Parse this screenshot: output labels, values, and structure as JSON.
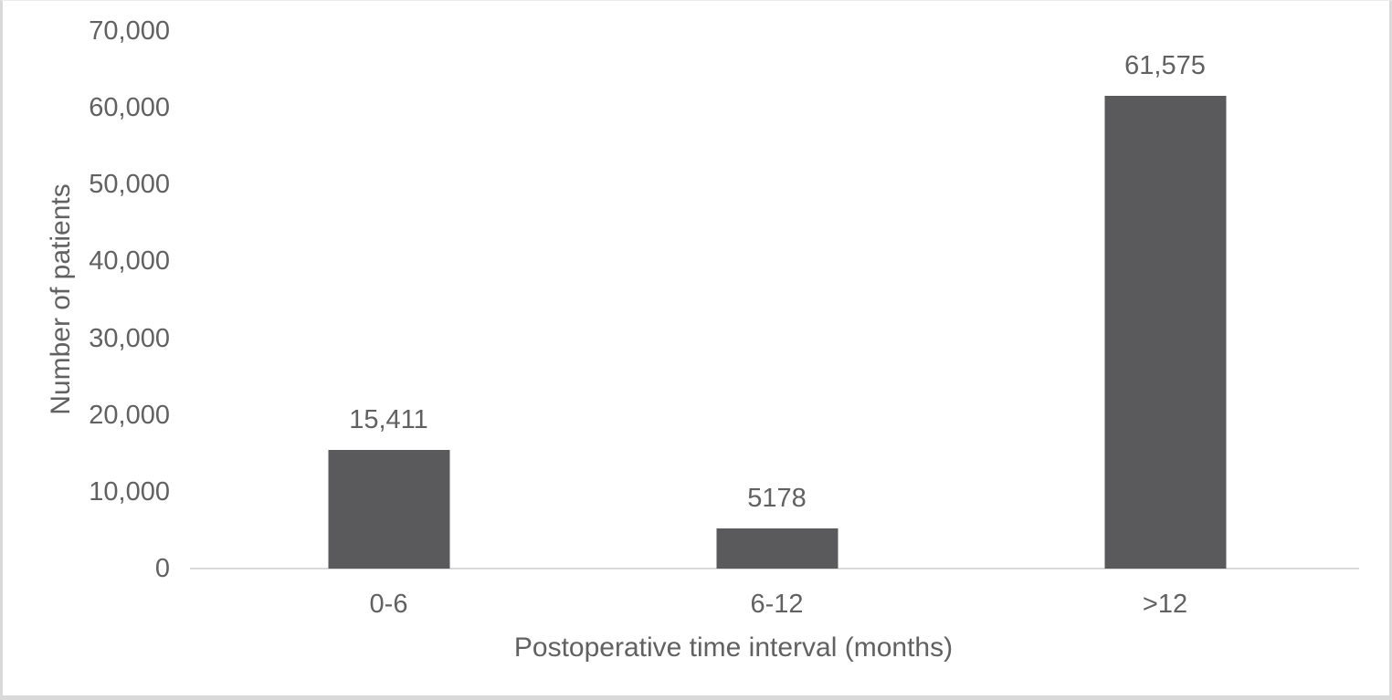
{
  "figure": {
    "background": "#ffffff",
    "frame_color": "#d9d9d9"
  },
  "chart_data": {
    "type": "bar",
    "title": "",
    "categories": [
      "0-6",
      "6-12",
      ">12"
    ],
    "values": [
      15411,
      5178,
      61575
    ],
    "value_labels": [
      "15,411",
      "5178",
      "61,575"
    ],
    "xlabel": "Postoperative time interval (months)",
    "ylabel": "Number of patients",
    "ylim": [
      0,
      70000
    ],
    "yticks": [
      0,
      10000,
      20000,
      30000,
      40000,
      50000,
      60000,
      70000
    ],
    "ytick_labels": [
      "0",
      "10,000",
      "20,000",
      "30,000",
      "40,000",
      "50,000",
      "60,000",
      "70,000"
    ],
    "grid": false,
    "legend": false,
    "bar_color": "#5a5a5c",
    "axis_line_color": "#d9d9d9",
    "text_color": "#616161"
  }
}
